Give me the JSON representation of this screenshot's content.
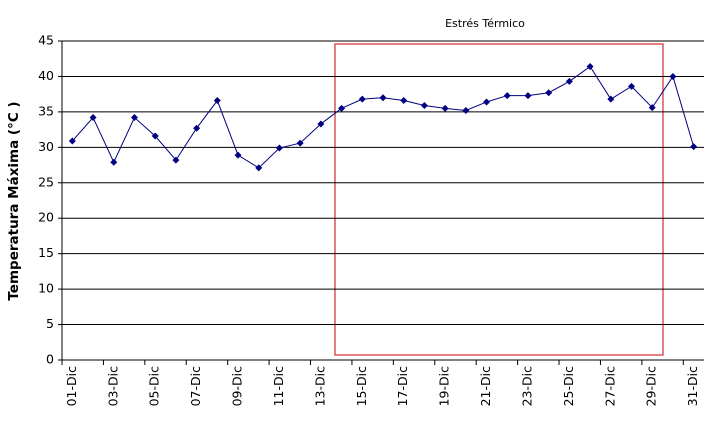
{
  "chart_data": {
    "type": "line",
    "y_label": "Temperatura Máxima (°C )",
    "annotation": "Estrés Térmico",
    "categories": [
      "01-Dic",
      null,
      "03-Dic",
      null,
      "05-Dic",
      null,
      "07-Dic",
      null,
      "09-Dic",
      null,
      "11-Dic",
      null,
      "13-Dic",
      null,
      "15-Dic",
      null,
      "17-Dic",
      null,
      "19-Dic",
      null,
      "21-Dic",
      null,
      "23-Dic",
      null,
      "25-Dic",
      null,
      "27-Dic",
      null,
      "29-Dic",
      null,
      "31-Dic"
    ],
    "series": [
      {
        "color": "#000080",
        "values": [
          30.9,
          34.2,
          27.9,
          34.2,
          31.6,
          28.2,
          32.7,
          36.6,
          28.9,
          27.1,
          29.9,
          30.6,
          33.3,
          35.5,
          36.8,
          37.0,
          36.6,
          35.9,
          35.5,
          35.2,
          36.4,
          37.3,
          37.3,
          37.7,
          39.3,
          41.4,
          36.8,
          38.6,
          35.6,
          40.0,
          30.1
        ]
      }
    ],
    "ylim": [
      0,
      45
    ],
    "yticks": [
      0,
      5,
      10,
      15,
      20,
      25,
      30,
      35,
      40,
      45
    ],
    "grid": true
  }
}
